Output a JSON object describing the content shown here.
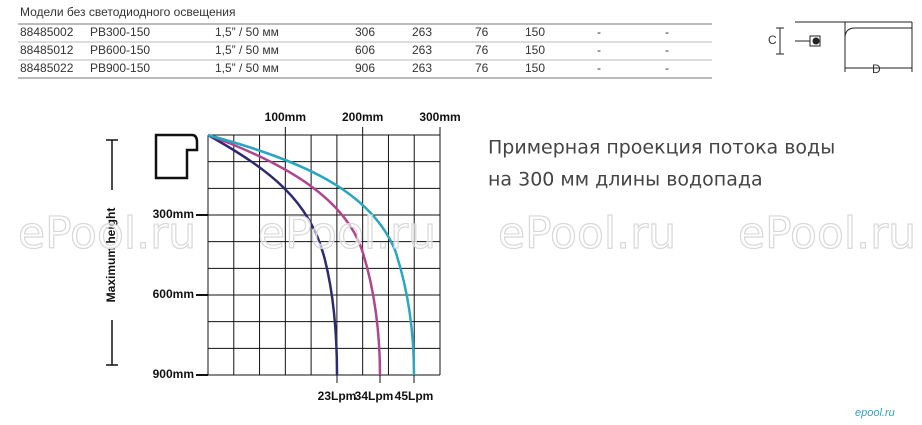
{
  "table": {
    "title": "Модели без светодиодного освещения",
    "rows": [
      [
        "88485002",
        "PB300-150",
        "1,5”  / 50 мм",
        "306",
        "263",
        "76",
        "150",
        "-",
        "-"
      ],
      [
        "88485012",
        "PB600-150",
        "1,5”  / 50 мм",
        "606",
        "263",
        "76",
        "150",
        "-",
        "-"
      ],
      [
        "88485022",
        "PB900-150",
        "1,5”  / 50 мм",
        "906",
        "263",
        "76",
        "150",
        "-",
        "-"
      ]
    ]
  },
  "dimension_diagram": {
    "labels": [
      "C",
      "D"
    ]
  },
  "flow_chart": {
    "x_labels": [
      "100mm",
      "200mm",
      "300mm"
    ],
    "y_labels": [
      "300mm",
      "600mm",
      "900mm"
    ],
    "y_axis_title": "Maximum height",
    "curve_labels": [
      "23Lpm",
      "34Lpm",
      "45Lpm"
    ]
  },
  "caption": [
    "Примерная проекция потока воды",
    "на 300 мм длины водопада"
  ],
  "watermarks": [
    "ePool.ru",
    "ePool.ru",
    "ePool.ru",
    "ePool.ru"
  ],
  "logo": "epool.ru"
}
